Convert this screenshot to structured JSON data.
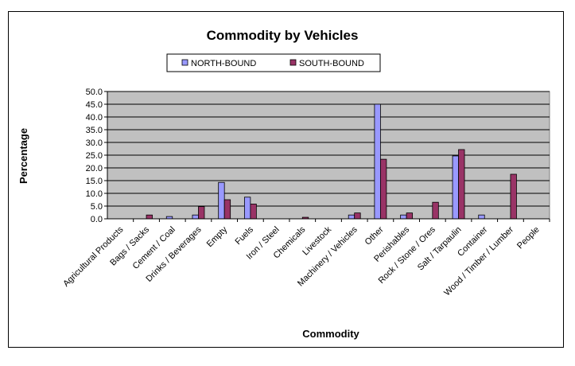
{
  "chart_data": {
    "type": "bar",
    "title": "Commodity by Vehicles",
    "xlabel": "Commodity",
    "ylabel": "Percentage",
    "ylim": [
      0,
      50
    ],
    "yticks": [
      "0.0",
      "5.0",
      "10.0",
      "15.0",
      "20.0",
      "25.0",
      "30.0",
      "35.0",
      "40.0",
      "45.0",
      "50.0"
    ],
    "grid": true,
    "legend_position": "top-center",
    "categories": [
      "Agricultural Products",
      "Bags / Sacks",
      "Cement / Coal",
      "Drinks / Beverages",
      "Empty",
      "Fuels",
      "Iron / Steel",
      "Chemicals",
      "Livestock",
      "Machinery / Vehicles",
      "Other",
      "Perishables",
      "Rock / Stone / Ores",
      "Salt / Tarpaulin",
      "Container",
      "Wood / Timber / Lumber",
      "People"
    ],
    "series": [
      {
        "name": "NORTH-BOUND",
        "color": "#9999ff",
        "values": [
          0,
          0,
          0.9,
          1.5,
          14.3,
          8.5,
          0,
          0,
          0,
          1.5,
          45,
          1.5,
          0,
          24.7,
          1.5,
          0,
          0
        ]
      },
      {
        "name": "SOUTH-BOUND",
        "color": "#993366",
        "values": [
          0,
          1.5,
          0,
          4.8,
          7.5,
          5.8,
          0,
          0.6,
          0,
          2.3,
          23.4,
          2.3,
          6.5,
          27.2,
          0,
          17.5,
          0
        ]
      }
    ],
    "plot_background": "#c0c0c0"
  }
}
